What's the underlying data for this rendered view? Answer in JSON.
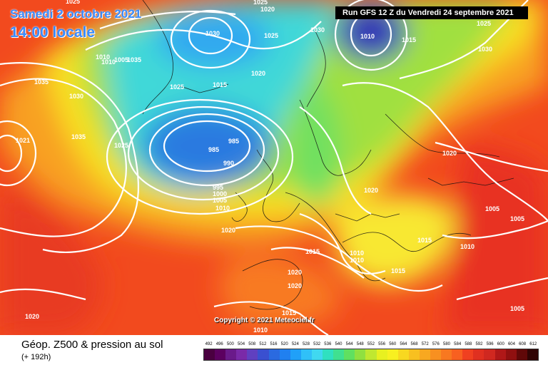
{
  "header": {
    "date_title": "Samedi 2 octobre 2021",
    "time_title": "14:00 locale",
    "run_info": "Run GFS 12 Z du Vendredi 24 septembre 2021"
  },
  "copyright": "Copyright © 2021 Meteociel.fr",
  "footer": {
    "title": "Géop. Z500 & pression au sol",
    "subtitle": "(+ 192h)"
  },
  "legend": {
    "labels": [
      "492",
      "496",
      "500",
      "504",
      "508",
      "512",
      "516",
      "520",
      "524",
      "528",
      "532",
      "536",
      "540",
      "544",
      "548",
      "552",
      "556",
      "560",
      "564",
      "568",
      "572",
      "576",
      "580",
      "584",
      "588",
      "592",
      "596",
      "600",
      "604",
      "608",
      "612"
    ],
    "colors": [
      "#4a0040",
      "#5c0060",
      "#6a1a8a",
      "#7a2aa8",
      "#6040c0",
      "#3a50d0",
      "#2a6ae0",
      "#2080f0",
      "#20a0f8",
      "#30c0f8",
      "#40d8f0",
      "#30e0c0",
      "#40e090",
      "#60e060",
      "#90e040",
      "#c0e830",
      "#e8f020",
      "#f8f020",
      "#f8d820",
      "#f8c020",
      "#f8a820",
      "#f89020",
      "#f87820",
      "#f86020",
      "#f04020",
      "#e03020",
      "#d02820",
      "#b01818",
      "#901010",
      "#600808",
      "#300404"
    ]
  },
  "isobar_labels": [
    {
      "text": "1025"
    },
    {
      "text": "1030"
    },
    {
      "text": "1035"
    },
    {
      "text": "1030"
    },
    {
      "text": "1035"
    },
    {
      "text": "1021"
    },
    {
      "text": "1025"
    },
    {
      "text": "1010"
    },
    {
      "text": "1005"
    },
    {
      "text": "1010"
    },
    {
      "text": "1035"
    },
    {
      "text": "1025"
    },
    {
      "text": "1030"
    },
    {
      "text": "1025"
    },
    {
      "text": "1015"
    },
    {
      "text": "1020"
    },
    {
      "text": "985"
    },
    {
      "text": "985"
    },
    {
      "text": "990"
    },
    {
      "text": "995"
    },
    {
      "text": "1000"
    },
    {
      "text": "1005"
    },
    {
      "text": "1010"
    },
    {
      "text": "1020"
    },
    {
      "text": "1010"
    },
    {
      "text": "1015"
    },
    {
      "text": "1025"
    },
    {
      "text": "1030"
    },
    {
      "text": "1020"
    },
    {
      "text": "1020"
    },
    {
      "text": "1015"
    },
    {
      "text": "1010"
    },
    {
      "text": "1010"
    },
    {
      "text": "1015"
    },
    {
      "text": "1015"
    },
    {
      "text": "1010"
    },
    {
      "text": "1005"
    },
    {
      "text": "1005"
    },
    {
      "text": "1005"
    },
    {
      "text": "1020"
    },
    {
      "text": "1020"
    },
    {
      "text": "1020"
    },
    {
      "text": "1015"
    },
    {
      "text": "1010"
    },
    {
      "text": "1020"
    },
    {
      "text": "1025"
    }
  ]
}
